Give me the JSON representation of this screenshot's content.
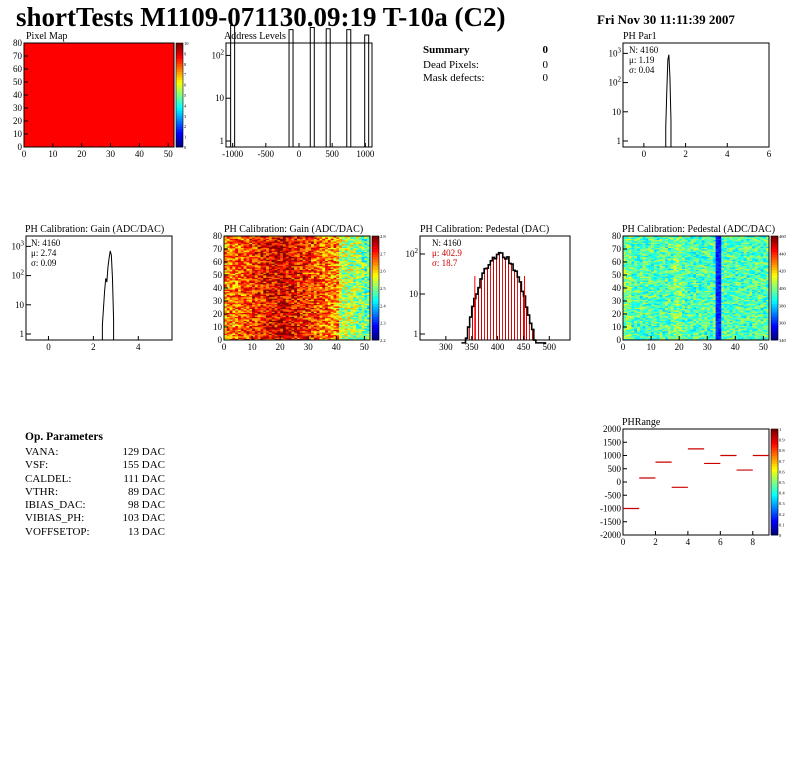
{
  "header": {
    "title": "shortTests M1109-071130.09:19 T-10a (C2)",
    "date": "Fri Nov 30 11:11:39 2007"
  },
  "summary": {
    "title": "Summary",
    "title_value": "0",
    "rows": [
      {
        "label": "Dead Pixels:",
        "value": "0"
      },
      {
        "label": "Mask defects:",
        "value": "0"
      }
    ]
  },
  "op_params": {
    "title": "Op. Parameters",
    "rows": [
      {
        "label": "VANA:",
        "value": "129 DAC"
      },
      {
        "label": "VSF:",
        "value": "155 DAC"
      },
      {
        "label": "CALDEL:",
        "value": "111 DAC"
      },
      {
        "label": "VTHR:",
        "value": "89 DAC"
      },
      {
        "label": "IBIAS_DAC:",
        "value": "98 DAC"
      },
      {
        "label": "VIBIAS_PH:",
        "value": "103 DAC"
      },
      {
        "label": "VOFFSETOP:",
        "value": "13 DAC"
      }
    ]
  },
  "colors": {
    "red": "#ff0000",
    "pedestal_fill": "#cc0000",
    "stat_red": "#cc0000"
  },
  "chart_data": [
    {
      "id": "pixel_map",
      "type": "heatmap",
      "title": "Pixel Map",
      "xlim": [
        0,
        52
      ],
      "ylim": [
        0,
        80
      ],
      "xticks": [
        "0",
        "10",
        "20",
        "30",
        "40",
        "50"
      ],
      "yticks": [
        "0",
        "10",
        "20",
        "30",
        "40",
        "50",
        "60",
        "70",
        "80"
      ],
      "zticks": [
        "0",
        "1",
        "2",
        "3",
        "4",
        "5",
        "6",
        "7",
        "8",
        "9",
        "10"
      ],
      "uniform_value": 10
    },
    {
      "id": "address_levels",
      "type": "bar",
      "title": "Address Levels",
      "xlim": [
        -1100,
        1100
      ],
      "log_y": true,
      "xticks": [
        "-1000",
        "-500",
        "0",
        "500",
        "1000"
      ],
      "yticks": [
        "1",
        "10",
        "10^2"
      ],
      "peaks": [
        {
          "x": -1000,
          "y": 500
        },
        {
          "x": -120,
          "y": 400
        },
        {
          "x": 200,
          "y": 450
        },
        {
          "x": 440,
          "y": 420
        },
        {
          "x": 750,
          "y": 400
        },
        {
          "x": 1020,
          "y": 300
        }
      ]
    },
    {
      "id": "ph_par1",
      "type": "line",
      "title": "PH Par1",
      "xlim": [
        -1,
        6
      ],
      "log_y": true,
      "xticks": [
        "0",
        "2",
        "4",
        "6"
      ],
      "yticks": [
        "1",
        "10",
        "10^2",
        "10^3"
      ],
      "stats": [
        {
          "label": "N:",
          "value": "4160"
        },
        {
          "label": "μ:",
          "value": "1.19"
        },
        {
          "label": "σ:",
          "value": "0.04"
        }
      ],
      "x": [
        1.05,
        1.1,
        1.15,
        1.2,
        1.25,
        1.3
      ],
      "y": [
        3,
        50,
        600,
        900,
        150,
        5
      ]
    },
    {
      "id": "gain_1d",
      "type": "line",
      "title": "PH Calibration: Gain (ADC/DAC)",
      "xlim": [
        -1,
        5.5
      ],
      "log_y": true,
      "xticks": [
        "0",
        "2",
        "4"
      ],
      "yticks": [
        "1",
        "10",
        "10^2",
        "10^3"
      ],
      "stats": [
        {
          "label": "N:",
          "value": "4160"
        },
        {
          "label": "μ:",
          "value": "2.74"
        },
        {
          "label": "σ:",
          "value": "0.09"
        }
      ],
      "x": [
        2.4,
        2.5,
        2.55,
        2.6,
        2.65,
        2.7,
        2.75,
        2.8,
        2.85,
        2.9
      ],
      "y": [
        2,
        30,
        80,
        60,
        200,
        400,
        700,
        500,
        80,
        3
      ]
    },
    {
      "id": "gain_2d",
      "type": "heatmap",
      "title": "PH Calibration: Gain (ADC/DAC)",
      "xlim": [
        0,
        52
      ],
      "ylim": [
        0,
        80
      ],
      "xticks": [
        "0",
        "10",
        "20",
        "30",
        "40",
        "50"
      ],
      "yticks": [
        "0",
        "10",
        "20",
        "30",
        "40",
        "50",
        "60",
        "70",
        "80"
      ],
      "zticks": [
        "2.2",
        "2.3",
        "2.4",
        "2.5",
        "2.6",
        "2.7",
        "2.8"
      ]
    },
    {
      "id": "pedestal_1d",
      "type": "bar",
      "title": "PH Calibration: Pedestal (DAC)",
      "xlim": [
        250,
        540
      ],
      "log_y": true,
      "xticks": [
        "300",
        "350",
        "400",
        "450",
        "500"
      ],
      "yticks": [
        "1",
        "10",
        "10^2"
      ],
      "stats": [
        {
          "label": "N:",
          "value": "4160"
        },
        {
          "label": "μ:",
          "value": "402.9"
        },
        {
          "label": "σ:",
          "value": "18.7"
        }
      ],
      "mean": 402.9,
      "sigma": 18.7,
      "cut_lines": [
        356,
        452
      ]
    },
    {
      "id": "pedestal_2d",
      "type": "heatmap",
      "title": "PH Calibration: Pedestal (ADC/DAC)",
      "xlim": [
        0,
        52
      ],
      "ylim": [
        0,
        80
      ],
      "xticks": [
        "0",
        "10",
        "20",
        "30",
        "40",
        "50"
      ],
      "yticks": [
        "0",
        "10",
        "20",
        "30",
        "40",
        "50",
        "60",
        "70",
        "80"
      ],
      "zticks": [
        "340",
        "360",
        "380",
        "400",
        "420",
        "440",
        "460"
      ]
    },
    {
      "id": "ph_range",
      "type": "scatter",
      "title": "PHRange",
      "xlim": [
        0,
        9
      ],
      "ylim": [
        -2000,
        2000
      ],
      "xticks": [
        "0",
        "2",
        "4",
        "6",
        "8"
      ],
      "yticks": [
        "-2000",
        "-1500",
        "-1000",
        "-500",
        "0",
        "500",
        "1000",
        "1500",
        "2000"
      ],
      "zticks": [
        "0",
        "0.1",
        "0.2",
        "0.3",
        "0.4",
        "0.5",
        "0.6",
        "0.7",
        "0.8",
        "0.9",
        "1"
      ],
      "x": [
        0,
        1,
        2,
        3,
        4,
        5,
        6,
        7,
        8
      ],
      "y": [
        -1000,
        150,
        750,
        -200,
        1250,
        700,
        1000,
        450,
        1000
      ]
    }
  ]
}
